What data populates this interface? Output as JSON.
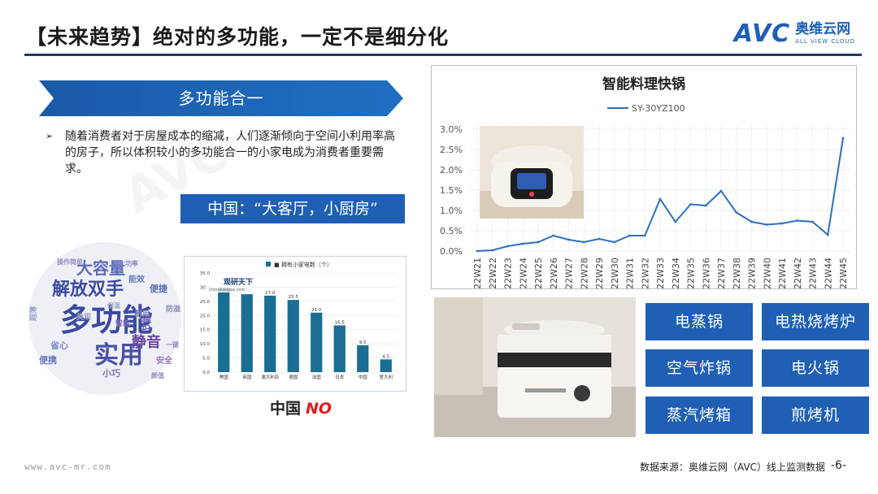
{
  "header": {
    "title": "【未来趋势】绝对的多功能，一定不是细分化",
    "logo_avc": "AVC",
    "logo_cn": "奥维云网",
    "logo_en": "ALL VIEW CLOUD"
  },
  "left": {
    "banner": "多功能合一",
    "bullet": "随着消费者对于房屋成本的缩减，人们逐渐倾向于空间小利用率高的房子，所以体积较小的多功能合一的小家电成为消费者重要需求。",
    "bullet_marker": "➢",
    "china_box": "中国：“大客厅，小厨房”",
    "wordcloud": [
      "多功能",
      "实用",
      "解放双手",
      "大容量",
      "静音",
      "节能",
      "便携",
      "省心",
      "小巧",
      "安全",
      "防溢",
      "能效",
      "大功率",
      "便捷",
      "超薄",
      "操作简单",
      "智能",
      "耐用",
      "美观",
      "颜值",
      "保温",
      "一键"
    ],
    "mini_chart": {
      "legend": "■ 拥有小家电数（个）",
      "brand": "观研天下",
      "brand_url": "chinabaogao.com",
      "ylim": [
        0,
        35
      ],
      "yticks": [
        "0.0",
        "5.0",
        "10.0",
        "15.0",
        "20.0",
        "25.0",
        "30.0",
        "35.0"
      ],
      "categories": [
        "美国",
        "英国",
        "澳大利亚",
        "德国",
        "法国",
        "日本",
        "中国",
        "意大利"
      ],
      "values": [
        30.0,
        27.5,
        27.0,
        25.5,
        21.0,
        16.5,
        9.5,
        4.5
      ],
      "value_labels": [
        "30.0",
        "27.5",
        "27.0",
        "25.5",
        "21.0",
        "16.5",
        "9.5",
        "4.5"
      ],
      "bar_color": "#1a6e94"
    },
    "china_no_label": "中国",
    "china_no_value": "NO"
  },
  "chart_data": {
    "type": "line",
    "title": "智能料理快锅",
    "series": [
      {
        "name": "SY-30YZ100",
        "values": [
          0.0,
          0.02,
          0.12,
          0.18,
          0.22,
          0.38,
          0.28,
          0.22,
          0.3,
          0.22,
          0.38,
          0.38,
          1.28,
          0.72,
          1.15,
          1.12,
          1.48,
          0.95,
          0.72,
          0.65,
          0.68,
          0.75,
          0.72,
          0.4,
          2.78
        ]
      }
    ],
    "categories": [
      "22W21",
      "22W22",
      "22W23",
      "22W24",
      "22W25",
      "22W26",
      "22W27",
      "22W28",
      "22W29",
      "22W30",
      "22W31",
      "22W32",
      "22W33",
      "22W34",
      "22W35",
      "22W36",
      "22W37",
      "22W38",
      "22W39",
      "22W40",
      "22W41",
      "22W42",
      "22W43",
      "22W44",
      "22W45"
    ],
    "yticks": [
      "0.0%",
      "0.5%",
      "1.0%",
      "1.5%",
      "2.0%",
      "2.5%",
      "3.0%"
    ],
    "ylim": [
      0,
      3.0
    ],
    "line_color": "#2e6fbd"
  },
  "categories_grid": [
    "电蒸锅",
    "电热烧烤炉",
    "空气炸锅",
    "电火锅",
    "蒸汽烤箱",
    "煎烤机"
  ],
  "footer": {
    "website": "www.avc-mr.com",
    "source": "数据来源：奥维云网（AVC）线上监测数据",
    "page": "-6-"
  },
  "colors": {
    "brand_blue": "#1f5fb4",
    "rule": "#1f3b66",
    "no_red": "#e01b1b"
  }
}
